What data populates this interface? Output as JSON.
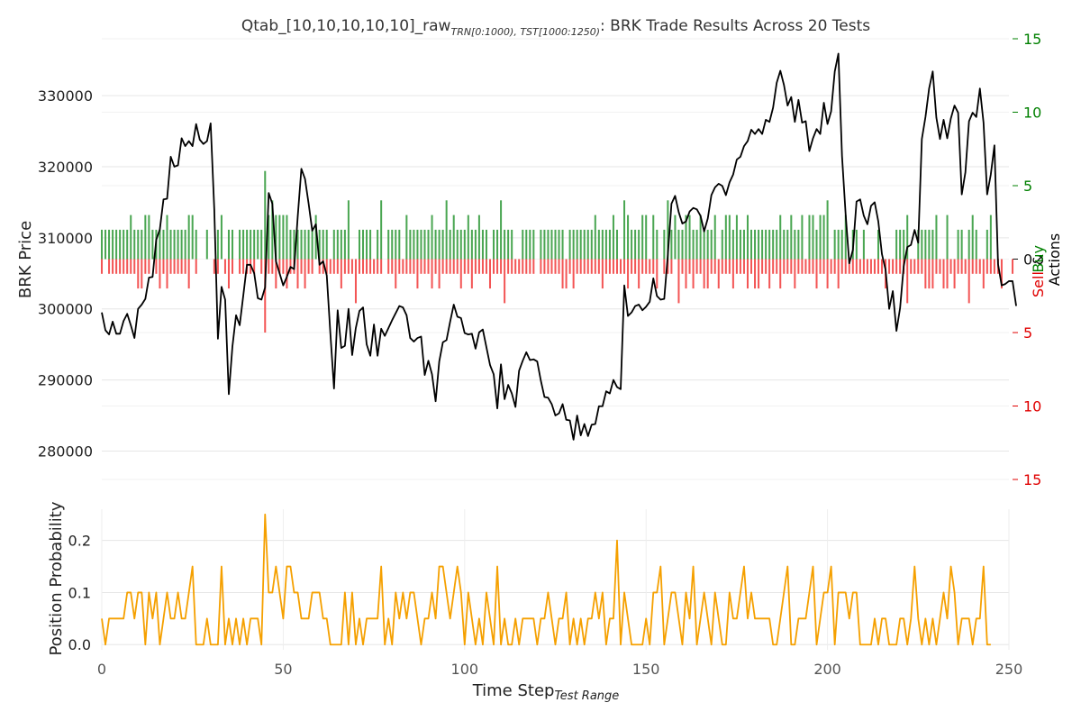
{
  "chart_data": [
    {
      "type": "line+bar",
      "title_main": "Qtab_[10,10,10,10,10]_raw",
      "title_sub": "TRN[0:1000), TST[1000:1250)",
      "title_suffix": ": BRK Trade Results Across 20 Tests",
      "ylabel": "BRK Price",
      "ylim": [
        276000,
        338000
      ],
      "yticks": [
        "280000",
        "290000",
        "300000",
        "310000",
        "320000",
        "330000"
      ],
      "y2label": {
        "sell": "Sell",
        "amp": "&",
        "buy": "Buy",
        "actions": "Actions"
      },
      "y2lim": [
        -15,
        15
      ],
      "y2ticks": [
        "15",
        "10",
        "5",
        "0",
        "5",
        "10",
        "15"
      ],
      "series": [
        {
          "name": "BRK Price",
          "color": "#000000",
          "x_start": 0,
          "y": [
            299500,
            297000,
            296400,
            298200,
            296500,
            296500,
            298300,
            299300,
            297700,
            295900,
            300000,
            300600,
            301400,
            304400,
            304500,
            309700,
            311200,
            315400,
            315500,
            321400,
            320000,
            320200,
            324000,
            322900,
            323600,
            322900,
            326000,
            323800,
            323200,
            323600,
            326100,
            314000,
            295800,
            303100,
            301300,
            288000,
            294700,
            299100,
            297700,
            301900,
            306200,
            306200,
            305000,
            301500,
            301300,
            303000,
            316300,
            314800,
            306700,
            305000,
            303300,
            304500,
            305900,
            305600,
            313000,
            319700,
            318300,
            314800,
            311000,
            311900,
            306200,
            306700,
            304700,
            296500,
            288800,
            299800,
            294500,
            294800,
            300000,
            293500,
            297300,
            299700,
            300200,
            295000,
            293400,
            297800,
            293400,
            297200,
            296200,
            297300,
            298400,
            299400,
            300400,
            300200,
            299100,
            295900,
            295400,
            295900,
            296100,
            290700,
            292700,
            290800,
            287000,
            292600,
            295300,
            295600,
            298200,
            300600,
            298900,
            298700,
            296600,
            296400,
            296500,
            294400,
            296700,
            297100,
            294600,
            292100,
            290800,
            286000,
            292200,
            287300,
            289300,
            288100,
            286200,
            291300,
            292700,
            293900,
            292800,
            292900,
            292600,
            289900,
            287600,
            287500,
            286600,
            285000,
            285300,
            286600,
            284400,
            284300,
            281600,
            285000,
            282200,
            283800,
            282100,
            283700,
            283800,
            286300,
            286300,
            288400,
            288100,
            290000,
            289000,
            288700,
            303300,
            299000,
            299500,
            300400,
            300600,
            299800,
            300300,
            301000,
            304300,
            301800,
            301300,
            301400,
            307600,
            314800,
            315900,
            313600,
            312000,
            312300,
            313700,
            314200,
            314000,
            313100,
            310900,
            312700,
            316000,
            317100,
            317600,
            317300,
            316000,
            317800,
            318900,
            321000,
            321400,
            322900,
            323600,
            325200,
            324600,
            325300,
            324600,
            326600,
            326300,
            328300,
            331800,
            333500,
            331500,
            328600,
            329800,
            326300,
            329400,
            326200,
            326400,
            322200,
            324000,
            325300,
            324600,
            329000,
            326000,
            327800,
            333400,
            335900,
            321500,
            313300,
            306400,
            308300,
            315100,
            315400,
            313100,
            311900,
            314500,
            315000,
            312300,
            307700,
            305500,
            300000,
            302500,
            296900,
            300100,
            306000,
            308700,
            309000,
            311100,
            309300,
            323900,
            327000,
            331000,
            333400,
            326900,
            323900,
            326600,
            324000,
            326800,
            328600,
            327600,
            316100,
            319200,
            326400,
            327600,
            327000,
            331000,
            326200,
            316100,
            318900,
            323000,
            306300,
            303300,
            303500,
            303900,
            303900,
            300400
          ]
        },
        {
          "name": "Buy",
          "color": "#4aa652",
          "x_start": 0,
          "values": [
            1,
            1,
            1,
            1,
            1,
            1,
            1,
            1,
            2,
            1,
            1,
            1,
            2,
            2,
            1,
            1,
            1,
            1,
            2,
            1,
            1,
            1,
            1,
            1,
            2,
            2,
            1,
            0,
            0,
            1,
            0,
            0,
            1,
            2,
            0,
            1,
            1,
            0,
            1,
            1,
            1,
            1,
            1,
            1,
            1,
            5,
            2,
            3,
            2,
            2,
            2,
            2,
            1,
            1,
            1,
            1,
            1,
            1,
            1,
            2,
            1,
            1,
            1,
            0,
            1,
            1,
            1,
            1,
            3,
            0,
            0,
            1,
            1,
            1,
            1,
            0,
            1,
            3,
            0,
            1,
            1,
            1,
            1,
            0,
            2,
            1,
            1,
            1,
            1,
            1,
            1,
            2,
            1,
            1,
            1,
            3,
            1,
            2,
            1,
            1,
            1,
            2,
            1,
            1,
            2,
            1,
            1,
            0,
            1,
            1,
            3,
            1,
            1,
            1,
            0,
            0,
            1,
            1,
            1,
            1,
            0,
            1,
            1,
            1,
            1,
            1,
            1,
            1,
            0,
            1,
            1,
            1,
            1,
            1,
            1,
            1,
            2,
            1,
            1,
            1,
            1,
            2,
            1,
            0,
            3,
            2,
            1,
            1,
            1,
            2,
            2,
            0,
            2,
            1,
            0,
            1,
            3,
            1,
            2,
            1,
            1,
            2,
            2,
            1,
            1,
            2,
            1,
            1,
            1,
            2,
            0,
            1,
            2,
            2,
            1,
            2,
            1,
            1,
            2,
            1,
            1,
            1,
            1,
            1,
            1,
            1,
            1,
            2,
            1,
            1,
            2,
            1,
            1,
            2,
            0,
            2,
            2,
            1,
            2,
            2,
            3,
            0,
            1,
            1,
            1,
            2,
            0,
            1,
            1,
            0,
            1,
            0,
            0,
            0,
            1,
            0,
            0,
            0,
            0,
            1,
            1,
            1,
            2,
            0,
            0,
            1,
            1,
            1,
            1,
            1,
            2,
            0,
            0,
            2,
            0,
            0,
            1,
            1,
            0,
            1,
            2,
            1,
            0,
            0,
            1,
            2,
            0
          ],
          "y_start": 3
        },
        {
          "name": "Sell",
          "color": "#f35555",
          "x_start": 0,
          "values": [
            1,
            0,
            1,
            1,
            1,
            1,
            1,
            1,
            1,
            1,
            2,
            2,
            1,
            1,
            0,
            1,
            2,
            1,
            2,
            1,
            1,
            1,
            1,
            1,
            2,
            0,
            1,
            0,
            0,
            0,
            0,
            1,
            1,
            0,
            1,
            2,
            1,
            0,
            1,
            1,
            1,
            1,
            1,
            0,
            1,
            5,
            1,
            1,
            2,
            1,
            1,
            2,
            1,
            1,
            2,
            1,
            2,
            1,
            1,
            0,
            1,
            1,
            1,
            1,
            1,
            1,
            2,
            1,
            1,
            1,
            3,
            1,
            1,
            1,
            1,
            1,
            1,
            1,
            0,
            1,
            1,
            2,
            1,
            1,
            1,
            1,
            1,
            2,
            1,
            1,
            1,
            2,
            1,
            2,
            1,
            1,
            1,
            1,
            1,
            2,
            1,
            1,
            2,
            1,
            1,
            1,
            1,
            2,
            1,
            1,
            1,
            3,
            1,
            1,
            1,
            1,
            1,
            1,
            1,
            1,
            0,
            1,
            1,
            1,
            1,
            1,
            1,
            2,
            2,
            1,
            2,
            1,
            1,
            1,
            1,
            1,
            1,
            1,
            2,
            1,
            1,
            1,
            1,
            1,
            1,
            2,
            1,
            1,
            2,
            1,
            1,
            1,
            1,
            2,
            0,
            1,
            1,
            1,
            0,
            3,
            1,
            2,
            1,
            2,
            1,
            1,
            2,
            2,
            1,
            1,
            2,
            1,
            1,
            1,
            2,
            1,
            1,
            1,
            2,
            1,
            2,
            2,
            1,
            1,
            2,
            1,
            1,
            2,
            1,
            1,
            1,
            2,
            1,
            1,
            1,
            1,
            1,
            2,
            1,
            1,
            2,
            1,
            1,
            2,
            1,
            1,
            1,
            1,
            1,
            1,
            1,
            1,
            1,
            1,
            1,
            1,
            2,
            1,
            1,
            1,
            1,
            1,
            3,
            1,
            1,
            1,
            1,
            2,
            2,
            2,
            1,
            1,
            2,
            2,
            1,
            2,
            1,
            1,
            1,
            3,
            1,
            1,
            1,
            2,
            1,
            1,
            1,
            1,
            2,
            0,
            0,
            1
          ],
          "y_start": 3
        }
      ]
    },
    {
      "type": "line",
      "xlabel_main": "Time Step",
      "xlabel_sub": "Test Range",
      "ylabel": "Position Probability",
      "xlim": [
        0,
        250
      ],
      "ylim": [
        -0.01,
        0.26
      ],
      "xticks": [
        "0",
        "50",
        "100",
        "150",
        "200",
        "250"
      ],
      "yticks": [
        "0.0",
        "0.1",
        "0.2"
      ],
      "series": [
        {
          "name": "Position Probability",
          "color": "#f5a000",
          "x_start": 0,
          "values": [
            0.05,
            0.0,
            0.05,
            0.05,
            0.05,
            0.05,
            0.05,
            0.1,
            0.1,
            0.05,
            0.1,
            0.1,
            0.0,
            0.1,
            0.05,
            0.1,
            0.0,
            0.05,
            0.1,
            0.05,
            0.05,
            0.1,
            0.05,
            0.05,
            0.1,
            0.15,
            0.0,
            0.0,
            0.0,
            0.05,
            0.0,
            0.0,
            0.0,
            0.15,
            0.0,
            0.05,
            0.0,
            0.05,
            0.0,
            0.05,
            0.0,
            0.05,
            0.05,
            0.05,
            0.0,
            0.25,
            0.1,
            0.1,
            0.15,
            0.1,
            0.05,
            0.15,
            0.15,
            0.1,
            0.1,
            0.05,
            0.05,
            0.05,
            0.1,
            0.1,
            0.1,
            0.05,
            0.05,
            0.0,
            0.0,
            0.0,
            0.0,
            0.1,
            0.0,
            0.1,
            0.0,
            0.05,
            0.0,
            0.05,
            0.05,
            0.05,
            0.05,
            0.15,
            0.0,
            0.05,
            0.0,
            0.1,
            0.05,
            0.1,
            0.05,
            0.1,
            0.1,
            0.05,
            0.0,
            0.05,
            0.05,
            0.1,
            0.05,
            0.15,
            0.15,
            0.1,
            0.05,
            0.1,
            0.15,
            0.1,
            0.0,
            0.1,
            0.05,
            0.0,
            0.05,
            0.0,
            0.1,
            0.05,
            0.0,
            0.15,
            0.0,
            0.05,
            0.0,
            0.0,
            0.05,
            0.0,
            0.05,
            0.05,
            0.05,
            0.05,
            0.0,
            0.05,
            0.05,
            0.1,
            0.05,
            0.0,
            0.05,
            0.05,
            0.1,
            0.0,
            0.05,
            0.0,
            0.05,
            0.0,
            0.05,
            0.05,
            0.1,
            0.05,
            0.1,
            0.0,
            0.05,
            0.05,
            0.2,
            0.0,
            0.1,
            0.05,
            0.0,
            0.0,
            0.0,
            0.0,
            0.05,
            0.0,
            0.1,
            0.1,
            0.15,
            0.0,
            0.05,
            0.1,
            0.1,
            0.05,
            0.0,
            0.1,
            0.05,
            0.15,
            0.0,
            0.05,
            0.1,
            0.05,
            0.0,
            0.1,
            0.05,
            0.0,
            0.0,
            0.1,
            0.05,
            0.05,
            0.1,
            0.15,
            0.05,
            0.1,
            0.05,
            0.05,
            0.05,
            0.05,
            0.05,
            0.0,
            0.0,
            0.05,
            0.1,
            0.15,
            0.0,
            0.0,
            0.05,
            0.05,
            0.05,
            0.1,
            0.15,
            0.0,
            0.05,
            0.1,
            0.1,
            0.15,
            0.0,
            0.1,
            0.1,
            0.1,
            0.05,
            0.1,
            0.1,
            0.0,
            0.0,
            0.0,
            0.0,
            0.05,
            0.0,
            0.05,
            0.05,
            0.0,
            0.0,
            0.0,
            0.05,
            0.05,
            0.0,
            0.05,
            0.15,
            0.05,
            0.0,
            0.05,
            0.0,
            0.05,
            0.0,
            0.05,
            0.1,
            0.05,
            0.15,
            0.1,
            0.0,
            0.05,
            0.05,
            0.05,
            0.0,
            0.05,
            0.05,
            0.15,
            0.0,
            0.0
          ]
        }
      ]
    }
  ]
}
